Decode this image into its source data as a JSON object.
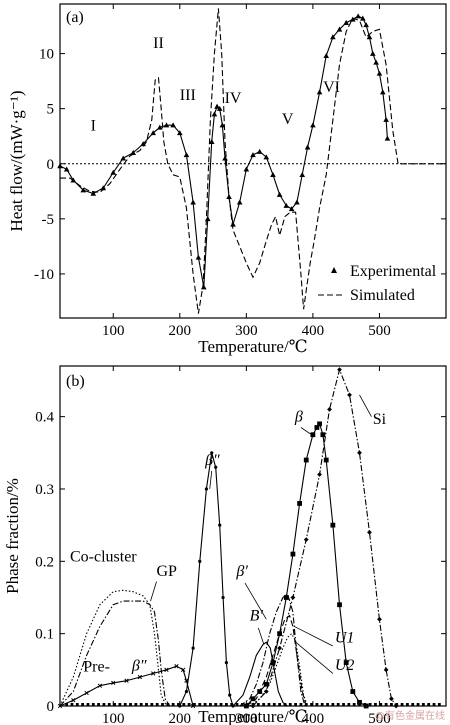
{
  "chart_data": [
    {
      "panel": "(a)",
      "type": "line",
      "xlabel": "Temperature/℃",
      "ylabel": "Heat flow/(mW·g⁻¹)",
      "xlim": [
        20,
        600
      ],
      "ylim": [
        -14,
        14.5
      ],
      "xticks": [
        "100",
        "200",
        "300",
        "400",
        "500"
      ],
      "yticks": [
        "10",
        "5",
        "0",
        "-5",
        "-10"
      ],
      "xtick_values": [
        100,
        200,
        300,
        400,
        500
      ],
      "ytick_values": [
        10,
        5,
        0,
        -5,
        -10
      ],
      "peak_labels": [
        {
          "text": "I",
          "x": 70,
          "y": 3
        },
        {
          "text": "II",
          "x": 168,
          "y": 10.5
        },
        {
          "text": "III",
          "x": 212,
          "y": 5.8
        },
        {
          "text": "IV",
          "x": 280,
          "y": 5.5
        },
        {
          "text": "V",
          "x": 362,
          "y": 3.6
        },
        {
          "text": "VI",
          "x": 428,
          "y": 6.5
        }
      ],
      "legend": {
        "position": "bottom-right",
        "entries": [
          "Experimental",
          "Simulated"
        ]
      },
      "series": [
        {
          "name": "Experimental",
          "style": "solid-triangle",
          "x": [
            20,
            30,
            40,
            55,
            70,
            85,
            100,
            115,
            130,
            145,
            160,
            170,
            180,
            190,
            200,
            210,
            220,
            228,
            236,
            242,
            248,
            252,
            256,
            260,
            264,
            268,
            274,
            280,
            290,
            300,
            310,
            320,
            330,
            340,
            350,
            360,
            368,
            376,
            384,
            392,
            400,
            410,
            420,
            430,
            440,
            450,
            460,
            468,
            475,
            480,
            485,
            490,
            495,
            500,
            505,
            510,
            512
          ],
          "y": [
            -0.2,
            -0.5,
            -1.5,
            -2.4,
            -2.7,
            -2.2,
            -0.8,
            0.5,
            1.0,
            1.8,
            2.8,
            3.3,
            3.5,
            3.5,
            2.8,
            0.8,
            -3.5,
            -8.5,
            -11.2,
            -5.0,
            2.0,
            4.5,
            5.2,
            5.0,
            3.5,
            0.5,
            -3.0,
            -5.5,
            -3.5,
            -0.5,
            0.8,
            1.1,
            0.6,
            -1.0,
            -2.8,
            -3.8,
            -4.1,
            -3.5,
            -1.0,
            1.5,
            3.5,
            6.5,
            9.8,
            11.5,
            12.2,
            12.8,
            13.1,
            13.4,
            13.2,
            12.6,
            11.5,
            10.0,
            9.2,
            8.2,
            6.5,
            4.0,
            2.3
          ]
        },
        {
          "name": "Simulated",
          "style": "dashed",
          "x": [
            20,
            35,
            50,
            65,
            80,
            95,
            110,
            125,
            140,
            150,
            158,
            163,
            168,
            172,
            176,
            182,
            190,
            200,
            210,
            220,
            228,
            235,
            240,
            246,
            252,
            258,
            263,
            268,
            274,
            280,
            290,
            300,
            310,
            320,
            330,
            338,
            344,
            350,
            358,
            366,
            374,
            382,
            386,
            390,
            396,
            402,
            410,
            420,
            430,
            440,
            450,
            460,
            470,
            480,
            490,
            500,
            510,
            520,
            528,
            540,
            560,
            580,
            600
          ],
          "y": [
            -1.3,
            -1.3,
            -2.0,
            -2.5,
            -2.6,
            -1.8,
            -0.5,
            0.7,
            1.2,
            2.0,
            4.0,
            7.6,
            7.8,
            5.0,
            2.0,
            0.0,
            -1.0,
            -1.2,
            -4.0,
            -10.0,
            -13.6,
            -11.0,
            -5.0,
            4.0,
            10.0,
            14.1,
            10.0,
            2.0,
            -3.0,
            -6.0,
            -7.5,
            -9.0,
            -10.3,
            -9.0,
            -7.0,
            -5.5,
            -4.8,
            -6.5,
            -4.8,
            -4.4,
            -4.4,
            -10.0,
            -13.2,
            -11.5,
            -9.0,
            -7.0,
            -4.0,
            -1.0,
            4.0,
            9.0,
            12.0,
            13.2,
            13.0,
            11.5,
            12.0,
            12.2,
            9.0,
            3.0,
            0.0,
            0.0,
            0.0,
            0.0,
            0.0
          ]
        },
        {
          "style": "dotted-zero-line",
          "x": [
            20,
            600
          ],
          "y": [
            0,
            0
          ]
        }
      ]
    },
    {
      "panel": "(b)",
      "type": "line",
      "xlabel": "Temperature/℃",
      "ylabel": "Phase fraction/%",
      "xlim": [
        20,
        600
      ],
      "ylim": [
        0,
        0.47
      ],
      "xticks": [
        "100",
        "200",
        "300",
        "400",
        "500"
      ],
      "yticks": [
        "0",
        "0.1",
        "0.2",
        "0.3",
        "0.4"
      ],
      "xtick_values": [
        100,
        200,
        300,
        400,
        500
      ],
      "ytick_values": [
        0,
        0.1,
        0.2,
        0.3,
        0.4
      ],
      "series": [
        {
          "name": "Co-cluster",
          "style": "dotted",
          "x": [
            20,
            40,
            60,
            80,
            100,
            115,
            130,
            145,
            155,
            162,
            168,
            172,
            180
          ],
          "y": [
            0.0,
            0.04,
            0.1,
            0.14,
            0.158,
            0.16,
            0.158,
            0.152,
            0.14,
            0.1,
            0.05,
            0.015,
            0.0
          ]
        },
        {
          "name": "GP",
          "style": "dash-dot",
          "x": [
            20,
            40,
            60,
            80,
            100,
            115,
            130,
            145,
            155,
            162,
            168,
            172,
            178,
            185
          ],
          "y": [
            0.0,
            0.02,
            0.07,
            0.11,
            0.14,
            0.145,
            0.145,
            0.145,
            0.14,
            0.13,
            0.09,
            0.05,
            0.01,
            0.0
          ]
        },
        {
          "name": "Pre-β″",
          "style": "crosses",
          "x": [
            20,
            40,
            60,
            80,
            100,
            120,
            140,
            160,
            180,
            195,
            205,
            210,
            220
          ],
          "y": [
            0.0,
            0.008,
            0.018,
            0.028,
            0.032,
            0.035,
            0.04,
            0.045,
            0.05,
            0.055,
            0.05,
            0.035,
            0.0
          ]
        },
        {
          "name": "β″",
          "style": "dot-line",
          "x": [
            200,
            210,
            220,
            230,
            240,
            248,
            254,
            260,
            265,
            270,
            275,
            280
          ],
          "y": [
            0.0,
            0.02,
            0.08,
            0.2,
            0.3,
            0.35,
            0.33,
            0.25,
            0.15,
            0.06,
            0.015,
            0.0
          ]
        },
        {
          "name": "B′",
          "style": "solid",
          "x": [
            280,
            295,
            305,
            315,
            325,
            330,
            336,
            342,
            348,
            355,
            362
          ],
          "y": [
            0.0,
            0.015,
            0.04,
            0.07,
            0.085,
            0.088,
            0.08,
            0.05,
            0.02,
            0.005,
            0.0
          ]
        },
        {
          "name": "β′",
          "style": "dash-dot",
          "x": [
            290,
            305,
            315,
            325,
            335,
            345,
            355,
            362,
            370,
            376,
            382,
            388
          ],
          "y": [
            0.0,
            0.01,
            0.03,
            0.06,
            0.1,
            0.13,
            0.15,
            0.155,
            0.13,
            0.07,
            0.02,
            0.0
          ]
        },
        {
          "name": "U1",
          "style": "dashed",
          "x": [
            300,
            315,
            330,
            340,
            350,
            358,
            365,
            370,
            376,
            384,
            390
          ],
          "y": [
            0.0,
            0.01,
            0.04,
            0.07,
            0.1,
            0.12,
            0.125,
            0.11,
            0.07,
            0.02,
            0.0
          ]
        },
        {
          "name": "U2",
          "style": "dotted",
          "x": [
            305,
            320,
            335,
            345,
            355,
            362,
            368,
            374,
            380,
            386,
            392
          ],
          "y": [
            0.0,
            0.01,
            0.03,
            0.055,
            0.08,
            0.095,
            0.1,
            0.09,
            0.055,
            0.015,
            0.0
          ]
        },
        {
          "name": "β",
          "style": "squares",
          "x": [
            300,
            310,
            320,
            330,
            340,
            350,
            360,
            370,
            380,
            390,
            400,
            406,
            410,
            415,
            420,
            430,
            440,
            450,
            460,
            470,
            480
          ],
          "y": [
            0.0,
            0.01,
            0.02,
            0.03,
            0.06,
            0.1,
            0.15,
            0.21,
            0.28,
            0.34,
            0.375,
            0.385,
            0.39,
            0.375,
            0.34,
            0.25,
            0.14,
            0.06,
            0.02,
            0.005,
            0.0
          ]
        },
        {
          "name": "Si",
          "style": "dash-dot-diamond",
          "x": [
            310,
            330,
            350,
            370,
            390,
            410,
            425,
            440,
            455,
            470,
            485,
            500,
            510,
            518,
            525
          ],
          "y": [
            0.0,
            0.02,
            0.08,
            0.15,
            0.23,
            0.32,
            0.41,
            0.465,
            0.43,
            0.35,
            0.24,
            0.12,
            0.05,
            0.01,
            0.0
          ]
        }
      ],
      "labels": [
        {
          "text": "Co-cluster",
          "x": 35,
          "y": 0.2
        },
        {
          "text": "GP",
          "x": 165,
          "y": 0.18
        },
        {
          "text": "Pre-",
          "x": 55,
          "y": 0.048
        },
        {
          "text": "β″",
          "x": 128,
          "y": 0.049
        },
        {
          "text": "β″",
          "x": 238,
          "y": 0.333
        },
        {
          "text": "β′",
          "x": 285,
          "y": 0.18
        },
        {
          "text": "B′",
          "x": 305,
          "y": 0.118
        },
        {
          "text": "β",
          "x": 373,
          "y": 0.393
        },
        {
          "text": "Si",
          "x": 490,
          "y": 0.39
        },
        {
          "text": "U1",
          "x": 433,
          "y": 0.088
        },
        {
          "text": "U2",
          "x": 433,
          "y": 0.05
        }
      ]
    }
  ],
  "watermark": "@有色金属在线"
}
